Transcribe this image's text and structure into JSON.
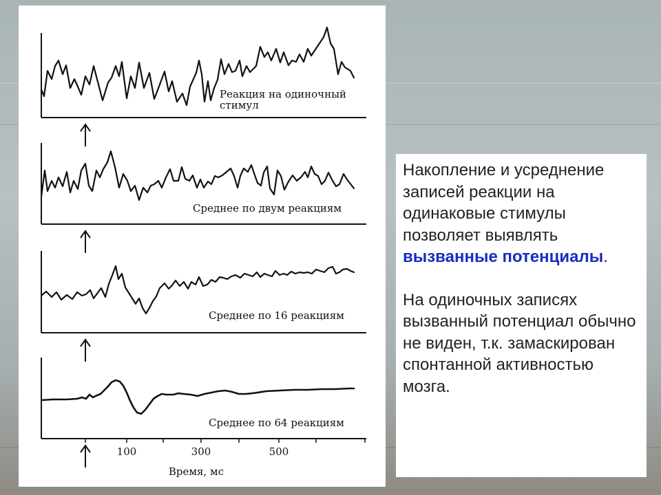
{
  "figure": {
    "traces": [
      {
        "label_lines": [
          "Реакция на одиночный",
          "стимул"
        ]
      },
      {
        "label_lines": [
          "Среднее по двум реакциям"
        ]
      },
      {
        "label_lines": [
          "Среднее по 16 реакциям"
        ]
      },
      {
        "label_lines": [
          "Среднее по 64 реакциям"
        ]
      }
    ],
    "x_axis": {
      "ticks": [
        "100",
        "300",
        "500"
      ],
      "label": "Время, мс"
    },
    "stimulus_marker": "arrow-up-icon"
  },
  "text_panel": {
    "para1_before": "Накопление и усреднение записей реакции на одинаковые стимулы позволяет выявлять ",
    "para1_highlight": "вызванные потенциалы",
    "para1_after": ".",
    "para2": "На одиночных записях вызванный потенциал обычно не виден, т.к. замаскирован спонтанной активностью мозга."
  },
  "colors": {
    "highlight": "#1a2dbf",
    "text": "#222222",
    "trace": "#111111"
  }
}
